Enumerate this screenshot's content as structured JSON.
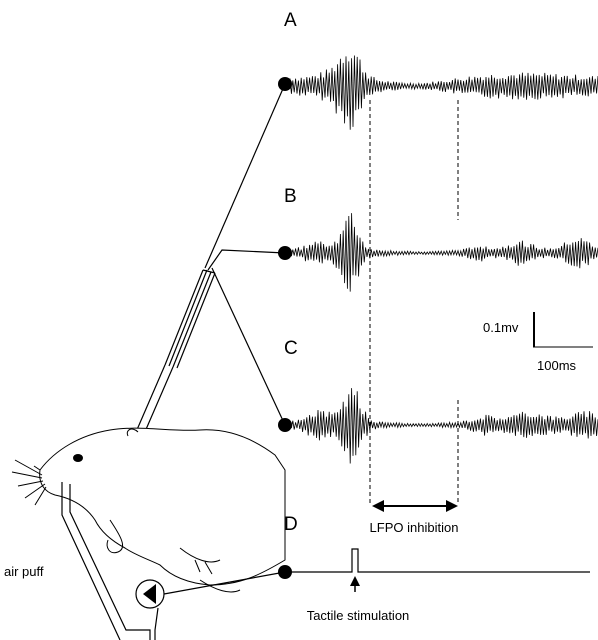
{
  "panels": [
    {
      "label": "A"
    },
    {
      "label": "B"
    },
    {
      "label": "C"
    },
    {
      "label": "D"
    }
  ],
  "scale": {
    "voltage": "0.1mv",
    "time": "100ms"
  },
  "annotations": {
    "inhibition": "LFPO inhibition",
    "stimulus": "Tactile stimulation",
    "air_puff": "air puff"
  }
}
